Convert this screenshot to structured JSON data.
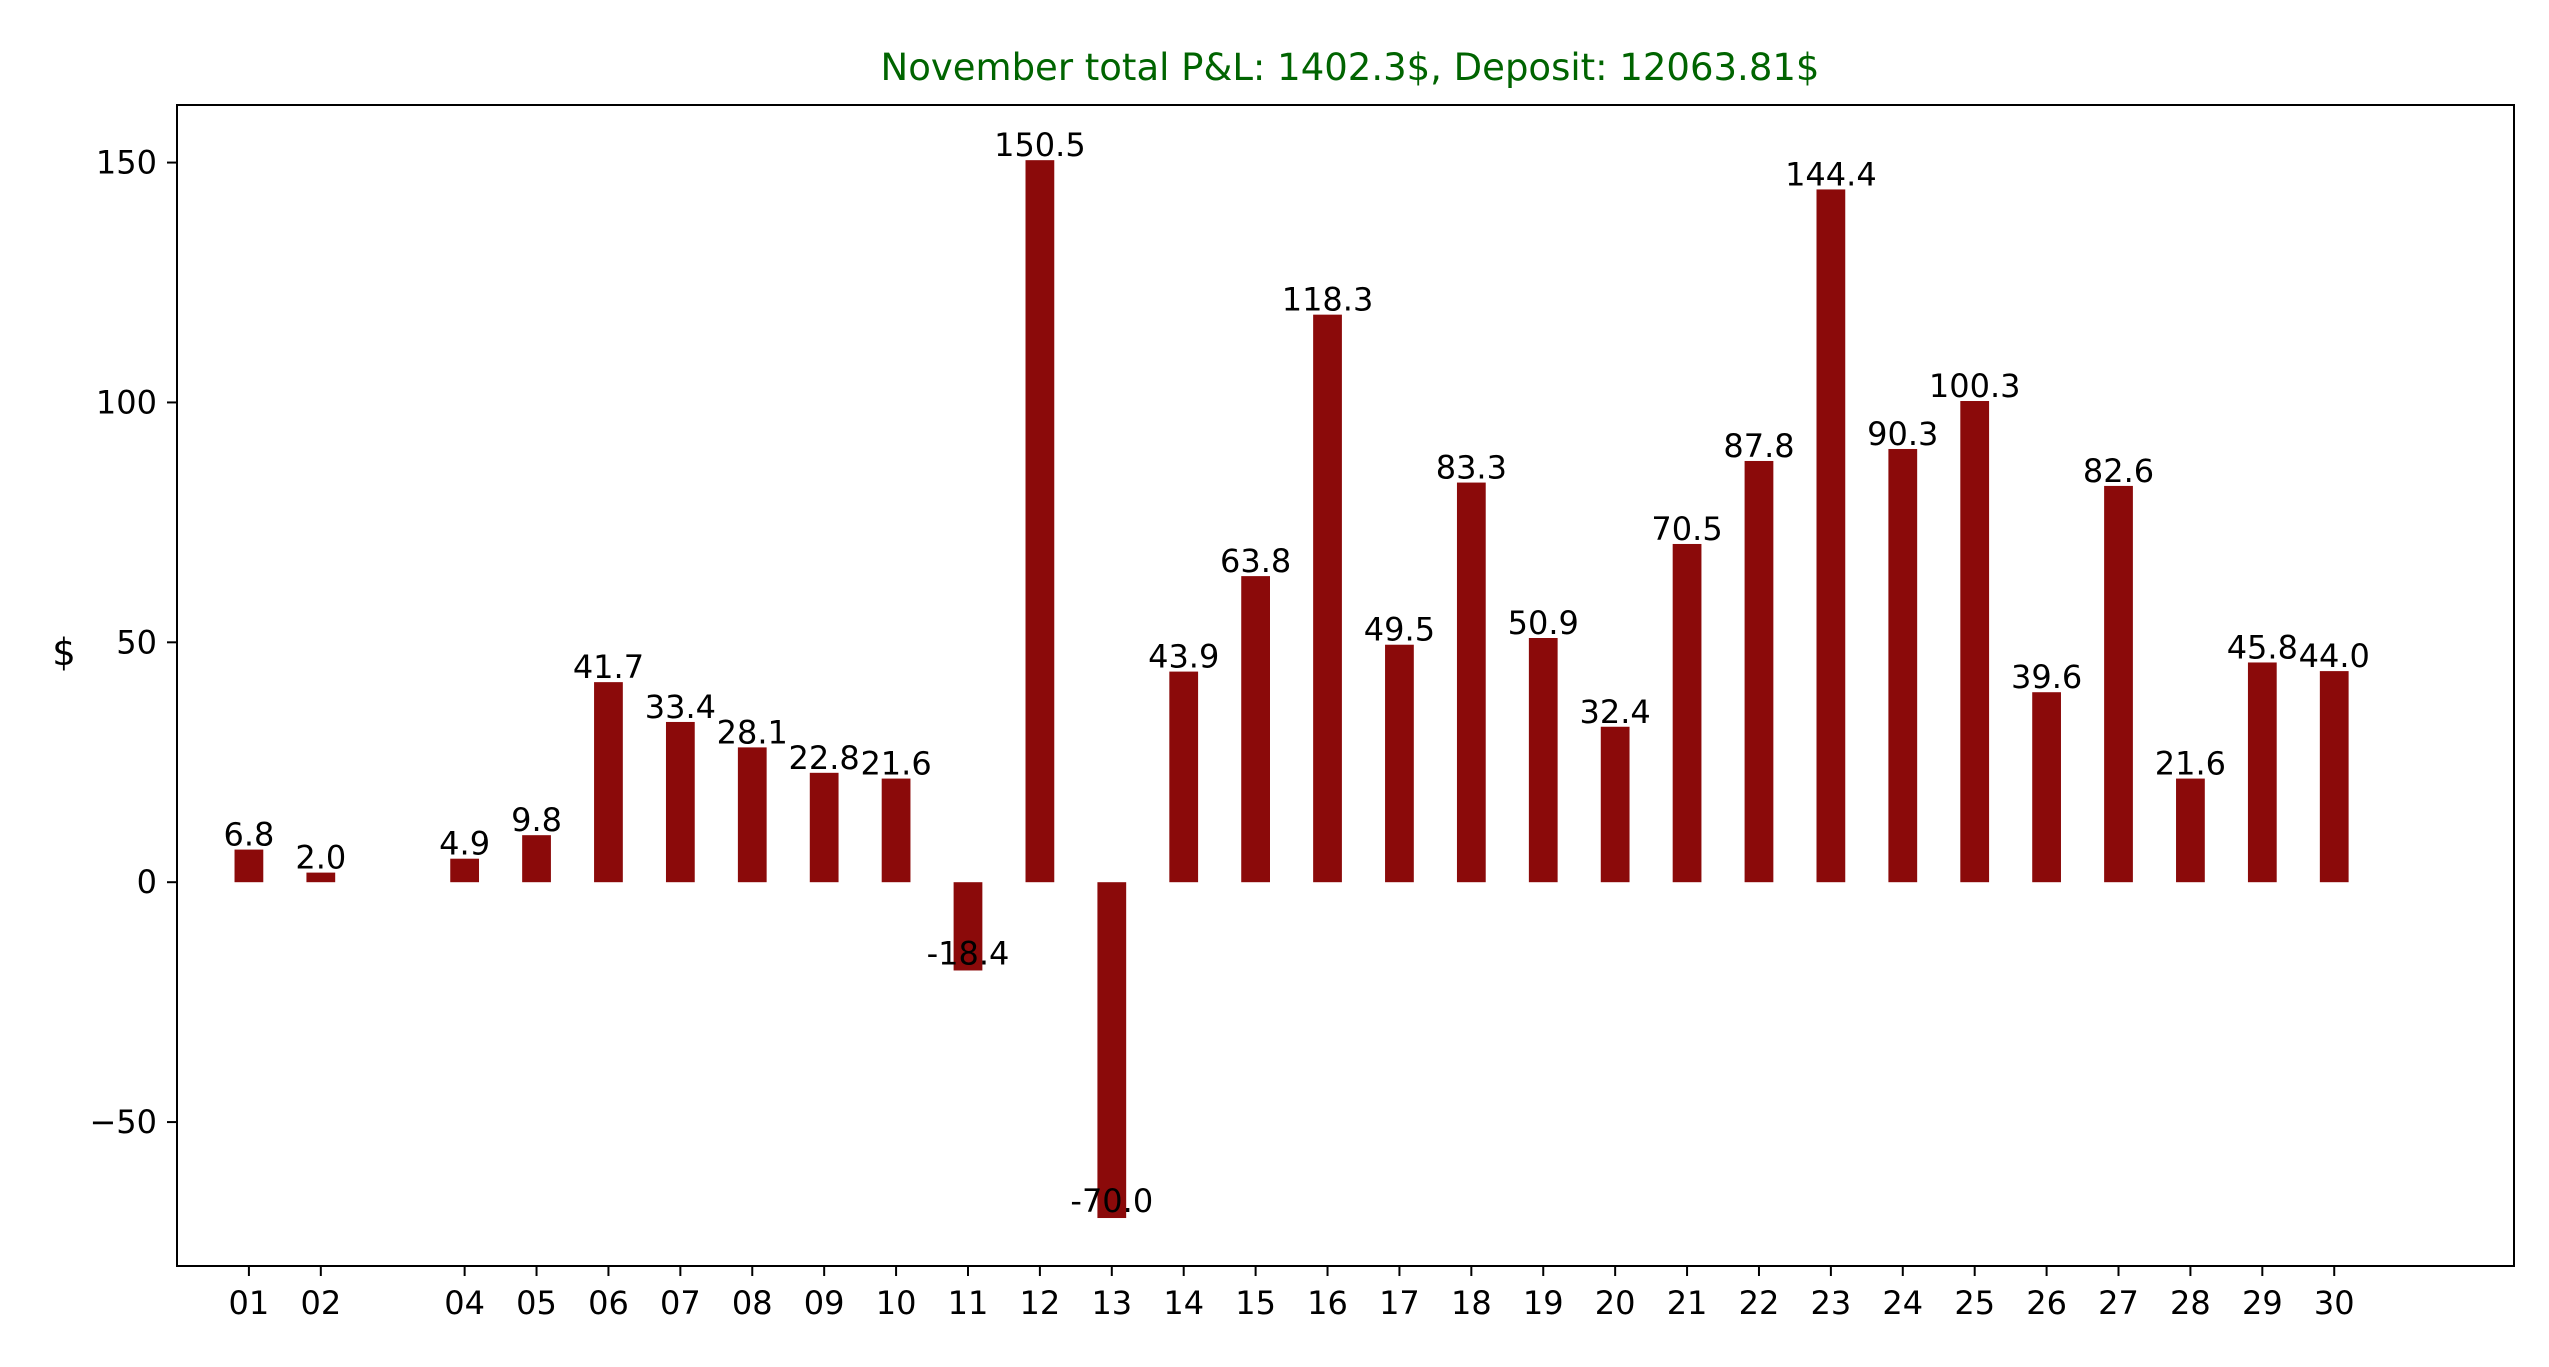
{
  "chart_data": {
    "type": "bar",
    "title": "November total P&L: 1402.3$, Deposit: 12063.81$",
    "title_color": "#006400",
    "bar_color": "#8b0a0a",
    "xlabel": "",
    "ylabel": "$",
    "ylim": [
      -80,
      162
    ],
    "yticks": [
      -50,
      0,
      50,
      100,
      150
    ],
    "ytick_labels": [
      "−50",
      "0",
      "50",
      "100",
      "150"
    ],
    "grid": false,
    "x_positions": [
      1,
      2,
      4,
      5,
      6,
      7,
      8,
      9,
      10,
      11,
      12,
      13,
      14,
      15,
      16,
      17,
      18,
      19,
      20,
      21,
      22,
      23,
      24,
      25,
      26,
      27,
      28,
      29,
      30
    ],
    "categories": [
      "01",
      "02",
      "04",
      "05",
      "06",
      "07",
      "08",
      "09",
      "10",
      "11",
      "12",
      "13",
      "14",
      "15",
      "16",
      "17",
      "18",
      "19",
      "20",
      "21",
      "22",
      "23",
      "24",
      "25",
      "26",
      "27",
      "28",
      "29",
      "30"
    ],
    "values": [
      6.8,
      2.0,
      4.9,
      9.8,
      41.7,
      33.4,
      28.1,
      22.8,
      21.6,
      -18.4,
      150.5,
      -70.0,
      43.9,
      63.8,
      118.3,
      49.5,
      83.3,
      50.9,
      32.4,
      70.5,
      87.8,
      144.4,
      90.3,
      100.3,
      39.6,
      82.6,
      21.6,
      45.8,
      44.0
    ],
    "value_labels": [
      "6.8",
      "2.0",
      "4.9",
      "9.8",
      "41.7",
      "33.4",
      "28.1",
      "22.8",
      "21.6",
      "-18.4",
      "150.5",
      "-70.0",
      "43.9",
      "63.8",
      "118.3",
      "49.5",
      "83.3",
      "50.9",
      "32.4",
      "70.5",
      "87.8",
      "144.4",
      "90.3",
      "100.3",
      "39.6",
      "82.6",
      "21.6",
      "45.8",
      "44.0"
    ]
  }
}
